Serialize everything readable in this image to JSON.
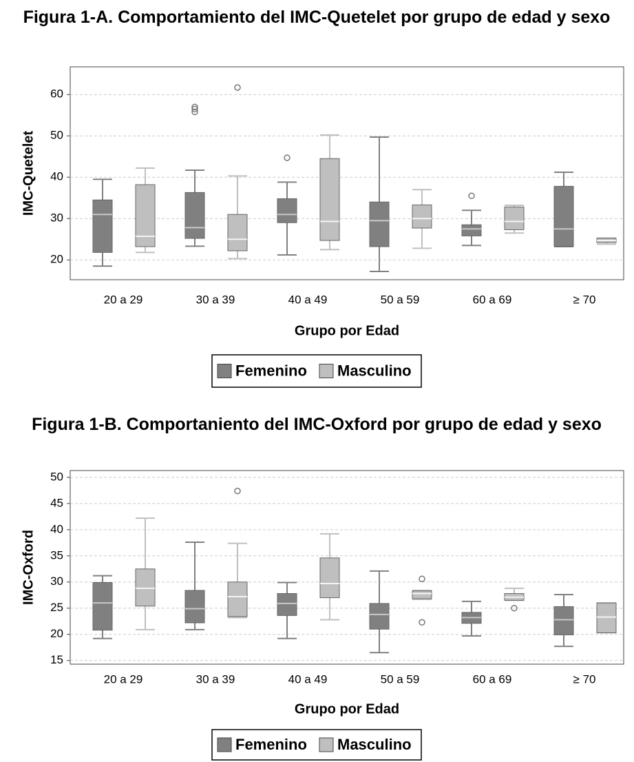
{
  "chart_data": [
    {
      "type": "box",
      "title": "Figura 1-A. Comportamiento del IMC-Quetelet por grupo de edad y sexo",
      "xlabel": "Grupo por Edad",
      "ylabel": "IMC-Quetelet",
      "categories": [
        "20 a 29",
        "30 a 39",
        "40 a 49",
        "50 a 59",
        "60 a 69",
        "≥ 70"
      ],
      "ylim": [
        15.2,
        66.7
      ],
      "yticks": [
        20,
        30,
        40,
        50,
        60
      ],
      "grid": true,
      "legend": "bottom",
      "series": [
        {
          "name": "Femenino",
          "color": "#808080",
          "boxes": [
            {
              "low": 18.5,
              "q1": 21.8,
              "median": 31,
              "q3": 34.5,
              "high": 39.5,
              "outliers": []
            },
            {
              "low": 23.3,
              "q1": 25.2,
              "median": 27.8,
              "q3": 36.3,
              "high": 41.7,
              "outliers": [
                57,
                56.5,
                55.8
              ]
            },
            {
              "low": 21.2,
              "q1": 29,
              "median": 31,
              "q3": 34.8,
              "high": 38.8,
              "outliers": [
                44.7
              ]
            },
            {
              "low": 17.2,
              "q1": 23.2,
              "median": 29.5,
              "q3": 34,
              "high": 49.7,
              "outliers": []
            },
            {
              "low": 23.5,
              "q1": 25.8,
              "median": 27.5,
              "q3": 28.5,
              "high": 32,
              "outliers": [
                35.5
              ]
            },
            {
              "low": 23.2,
              "q1": 23.3,
              "median": 27.5,
              "q3": 37.8,
              "high": 41.2,
              "outliers": []
            }
          ]
        },
        {
          "name": "Masculino",
          "color": "#bfbfbf",
          "boxes": [
            {
              "low": 21.8,
              "q1": 23.2,
              "median": 25.7,
              "q3": 38.2,
              "high": 42.2,
              "outliers": []
            },
            {
              "low": 20.3,
              "q1": 22.2,
              "median": 25,
              "q3": 31,
              "high": 40.3,
              "outliers": [
                61.7
              ]
            },
            {
              "low": 22.5,
              "q1": 24.7,
              "median": 29.3,
              "q3": 44.5,
              "high": 50.2,
              "outliers": []
            },
            {
              "low": 22.8,
              "q1": 27.7,
              "median": 30,
              "q3": 33.3,
              "high": 37,
              "outliers": []
            },
            {
              "low": 26.5,
              "q1": 27.3,
              "median": 29.3,
              "q3": 32.8,
              "high": 33.2,
              "outliers": []
            },
            {
              "low": 23.8,
              "q1": 24.2,
              "median": 24.7,
              "q3": 25.2,
              "high": 25.3,
              "outliers": []
            }
          ]
        }
      ]
    },
    {
      "type": "box",
      "title": "Figura 1-B. Comportaniento del IMC-Oxford por grupo de edad y sexo",
      "xlabel": "Grupo por Edad",
      "ylabel": "IMC-Oxford",
      "categories": [
        "20 a 29",
        "30 a 39",
        "40 a 49",
        "50 a 59",
        "60 a 69",
        "≥ 70"
      ],
      "ylim": [
        14.3,
        51.3
      ],
      "yticks": [
        15,
        20,
        25,
        30,
        35,
        40,
        45,
        50
      ],
      "grid": true,
      "legend": "bottom",
      "series": [
        {
          "name": "Femenino",
          "color": "#808080",
          "boxes": [
            {
              "low": 19.2,
              "q1": 20.8,
              "median": 26,
              "q3": 29.9,
              "high": 31.2,
              "outliers": []
            },
            {
              "low": 20.9,
              "q1": 22.2,
              "median": 24.9,
              "q3": 28.4,
              "high": 37.6,
              "outliers": []
            },
            {
              "low": 19.2,
              "q1": 23.6,
              "median": 25.9,
              "q3": 27.8,
              "high": 29.9,
              "outliers": []
            },
            {
              "low": 16.5,
              "q1": 21,
              "median": 23.8,
              "q3": 25.9,
              "high": 32.1,
              "outliers": []
            },
            {
              "low": 19.7,
              "q1": 22.1,
              "median": 23.2,
              "q3": 24.2,
              "high": 26.3,
              "outliers": []
            },
            {
              "low": 17.7,
              "q1": 19.9,
              "median": 22.8,
              "q3": 25.3,
              "high": 27.6,
              "outliers": []
            }
          ]
        },
        {
          "name": "Masculino",
          "color": "#bfbfbf",
          "boxes": [
            {
              "low": 20.9,
              "q1": 25.4,
              "median": 28.8,
              "q3": 32.5,
              "high": 42.2,
              "outliers": []
            },
            {
              "low": 23.2,
              "q1": 23.4,
              "median": 27.2,
              "q3": 30,
              "high": 37.4,
              "outliers": [
                47.4
              ]
            },
            {
              "low": 22.8,
              "q1": 27,
              "median": 29.7,
              "q3": 34.6,
              "high": 39.2,
              "outliers": []
            },
            {
              "low": 26.7,
              "q1": 26.8,
              "median": 27.8,
              "q3": 28.3,
              "high": 28.4,
              "outliers": [
                30.6,
                22.3
              ]
            },
            {
              "low": 26.5,
              "q1": 26.5,
              "median": 27.1,
              "q3": 27.8,
              "high": 28.8,
              "outliers": [
                25
              ]
            },
            {
              "low": 20.3,
              "q1": 20.3,
              "median": 23.3,
              "q3": 26,
              "high": 26,
              "outliers": []
            }
          ]
        }
      ]
    }
  ]
}
